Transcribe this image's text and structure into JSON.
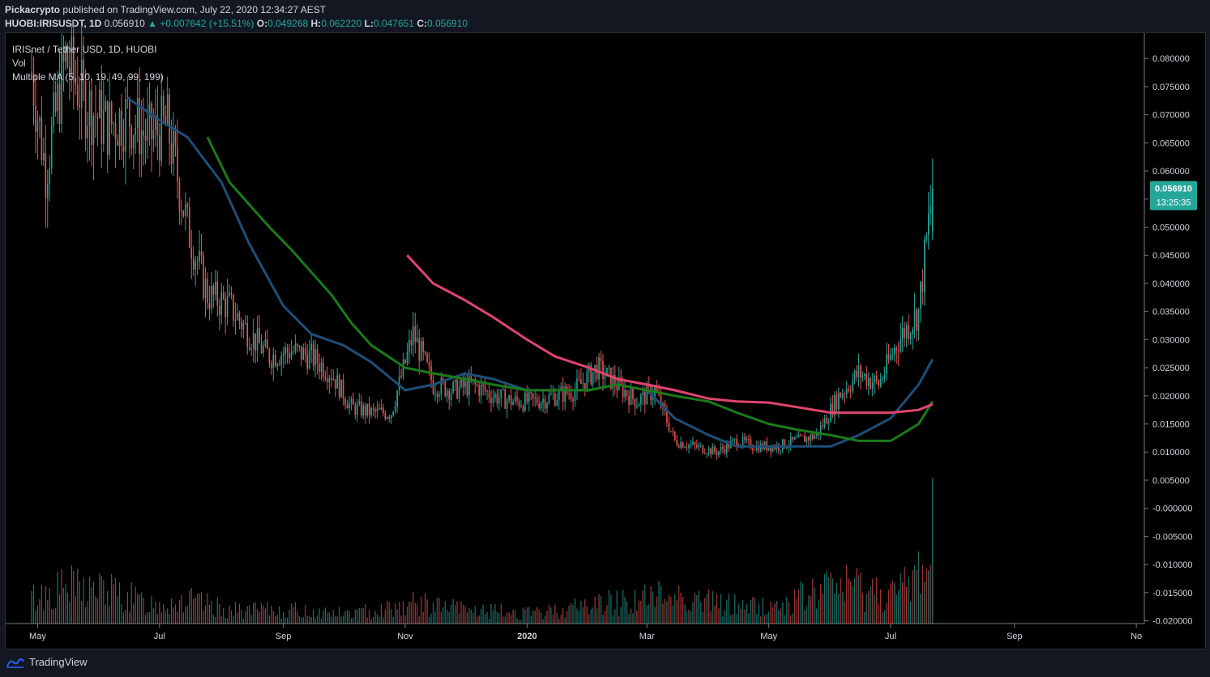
{
  "header": {
    "publisher": "Pickacrypto",
    "published_text": "published on TradingView.com, July 22, 2020 12:34:27 AEST",
    "symbol": "HUOBI:IRISUSDT, 1D",
    "last": "0.056910",
    "change_arrow": "▲",
    "change": "+0.007642 (+15.51%)",
    "o_label": "O:",
    "o_value": "0.049268",
    "h_label": "H:",
    "h_value": "0.062220",
    "l_label": "L:",
    "l_value": "0.047651",
    "c_label": "C:",
    "c_value": "0.056910"
  },
  "legend": {
    "title": "IRISnet / Tether USD, 1D, HUOBI",
    "vol": "Vol",
    "ma": "Multiple MA (5, 10, 19, 49, 99, 199)"
  },
  "price_badge": {
    "value": "0.056910",
    "countdown": "13:25:35",
    "color": "#26a69a"
  },
  "footer": {
    "brand": "TradingView",
    "logo_icon": "tradingview-logo-icon"
  },
  "colors": {
    "up": "#26a69a",
    "down": "#ef5350",
    "ma_blue": "#1f4e79",
    "ma_green": "#1b7a1b",
    "ma_pink": "#e0446f"
  },
  "chart_data": {
    "type": "candlestick",
    "title": "IRISnet / Tether USD, 1D, HUOBI",
    "yaxis_ticks": [
      "0.080000",
      "0.075000",
      "0.070000",
      "0.065000",
      "0.060000",
      "0.055000",
      "0.050000",
      "0.045000",
      "0.040000",
      "0.035000",
      "0.030000",
      "0.025000",
      "0.020000",
      "0.015000",
      "0.010000",
      "0.005000",
      "-0.000000",
      "-0.005000",
      "-0.010000",
      "-0.015000",
      "-0.020000"
    ],
    "ylim": [
      -0.0205,
      0.0845
    ],
    "xaxis_ticks": [
      "May",
      "Jul",
      "Sep",
      "Nov",
      "2020",
      "Mar",
      "May",
      "Jul",
      "Sep",
      "No"
    ],
    "close_series": {
      "dates": [
        "2019-04-25",
        "2019-05-05",
        "2019-05-15",
        "2019-05-25",
        "2019-06-05",
        "2019-06-15",
        "2019-06-25",
        "2019-07-05",
        "2019-07-15",
        "2019-07-25",
        "2019-08-05",
        "2019-08-15",
        "2019-08-25",
        "2019-09-05",
        "2019-09-15",
        "2019-09-25",
        "2019-10-05",
        "2019-10-15",
        "2019-10-25",
        "2019-11-05",
        "2019-11-15",
        "2019-11-25",
        "2019-12-05",
        "2019-12-15",
        "2019-12-25",
        "2020-01-05",
        "2020-01-15",
        "2020-01-25",
        "2020-02-05",
        "2020-02-15",
        "2020-02-25",
        "2020-03-05",
        "2020-03-15",
        "2020-03-25",
        "2020-04-05",
        "2020-04-15",
        "2020-04-25",
        "2020-05-05",
        "2020-05-15",
        "2020-05-25",
        "2020-06-05",
        "2020-06-15",
        "2020-06-25",
        "2020-07-05",
        "2020-07-15",
        "2020-07-22"
      ],
      "close": [
        0.085,
        0.06,
        0.08,
        0.072,
        0.068,
        0.07,
        0.066,
        0.068,
        0.05,
        0.038,
        0.036,
        0.031,
        0.027,
        0.028,
        0.027,
        0.024,
        0.018,
        0.017,
        0.017,
        0.031,
        0.022,
        0.021,
        0.022,
        0.02,
        0.019,
        0.019,
        0.02,
        0.021,
        0.025,
        0.022,
        0.019,
        0.021,
        0.012,
        0.011,
        0.01,
        0.012,
        0.011,
        0.011,
        0.012,
        0.013,
        0.02,
        0.024,
        0.022,
        0.03,
        0.035,
        0.05691
      ]
    },
    "moving_averages": [
      {
        "period": 19,
        "color": "#1f4e79",
        "dates": [
          "2019-06-15",
          "2019-07-01",
          "2019-07-15",
          "2019-08-01",
          "2019-08-15",
          "2019-09-01",
          "2019-09-15",
          "2019-10-01",
          "2019-10-15",
          "2019-11-01",
          "2019-11-15",
          "2019-12-01",
          "2019-12-15",
          "2020-01-01",
          "2020-01-15",
          "2020-02-01",
          "2020-02-15",
          "2020-03-01",
          "2020-03-15",
          "2020-04-01",
          "2020-04-15",
          "2020-05-01",
          "2020-05-15",
          "2020-06-01",
          "2020-06-15",
          "2020-07-01",
          "2020-07-15",
          "2020-07-22"
        ],
        "values": [
          0.073,
          0.069,
          0.066,
          0.058,
          0.047,
          0.036,
          0.031,
          0.029,
          0.026,
          0.021,
          0.022,
          0.024,
          0.023,
          0.021,
          0.021,
          0.021,
          0.022,
          0.021,
          0.016,
          0.013,
          0.011,
          0.011,
          0.011,
          0.011,
          0.013,
          0.016,
          0.022,
          0.0265
        ]
      },
      {
        "period": 49,
        "color": "#1b7a1b",
        "dates": [
          "2019-07-25",
          "2019-08-05",
          "2019-08-15",
          "2019-08-25",
          "2019-09-05",
          "2019-09-15",
          "2019-09-25",
          "2019-10-05",
          "2019-10-15",
          "2019-11-01",
          "2019-11-15",
          "2019-12-01",
          "2019-12-15",
          "2020-01-01",
          "2020-01-15",
          "2020-02-01",
          "2020-02-15",
          "2020-03-01",
          "2020-03-15",
          "2020-04-01",
          "2020-04-15",
          "2020-05-01",
          "2020-05-15",
          "2020-06-01",
          "2020-06-15",
          "2020-07-01",
          "2020-07-15",
          "2020-07-22"
        ],
        "values": [
          0.066,
          0.058,
          0.054,
          0.05,
          0.046,
          0.042,
          0.038,
          0.033,
          0.029,
          0.025,
          0.024,
          0.023,
          0.022,
          0.021,
          0.021,
          0.021,
          0.022,
          0.021,
          0.02,
          0.019,
          0.017,
          0.015,
          0.014,
          0.013,
          0.012,
          0.012,
          0.015,
          0.019
        ]
      },
      {
        "period": 99,
        "color": "#e0446f",
        "dates": [
          "2019-11-02",
          "2019-11-15",
          "2019-12-01",
          "2019-12-15",
          "2020-01-01",
          "2020-01-15",
          "2020-02-01",
          "2020-02-15",
          "2020-03-01",
          "2020-03-15",
          "2020-04-01",
          "2020-04-15",
          "2020-05-01",
          "2020-05-15",
          "2020-06-01",
          "2020-06-15",
          "2020-07-01",
          "2020-07-15",
          "2020-07-22"
        ],
        "values": [
          0.045,
          0.04,
          0.037,
          0.034,
          0.03,
          0.027,
          0.025,
          0.023,
          0.022,
          0.021,
          0.0195,
          0.019,
          0.0188,
          0.018,
          0.017,
          0.017,
          0.017,
          0.0175,
          0.0185
        ]
      }
    ],
    "volume": {
      "dates": [
        "2019-04-25",
        "2019-05-15",
        "2019-06-05",
        "2019-06-25",
        "2019-07-15",
        "2019-08-05",
        "2019-09-05",
        "2019-10-05",
        "2019-11-05",
        "2019-12-05",
        "2020-01-05",
        "2020-02-05",
        "2020-03-05",
        "2020-03-15",
        "2020-04-05",
        "2020-05-05",
        "2020-06-05",
        "2020-06-15",
        "2020-07-05",
        "2020-07-21"
      ],
      "relative": [
        0.35,
        0.55,
        0.5,
        0.3,
        0.35,
        0.2,
        0.2,
        0.15,
        0.3,
        0.2,
        0.15,
        0.3,
        0.4,
        0.45,
        0.3,
        0.25,
        0.6,
        0.55,
        0.45,
        1.0
      ]
    }
  }
}
